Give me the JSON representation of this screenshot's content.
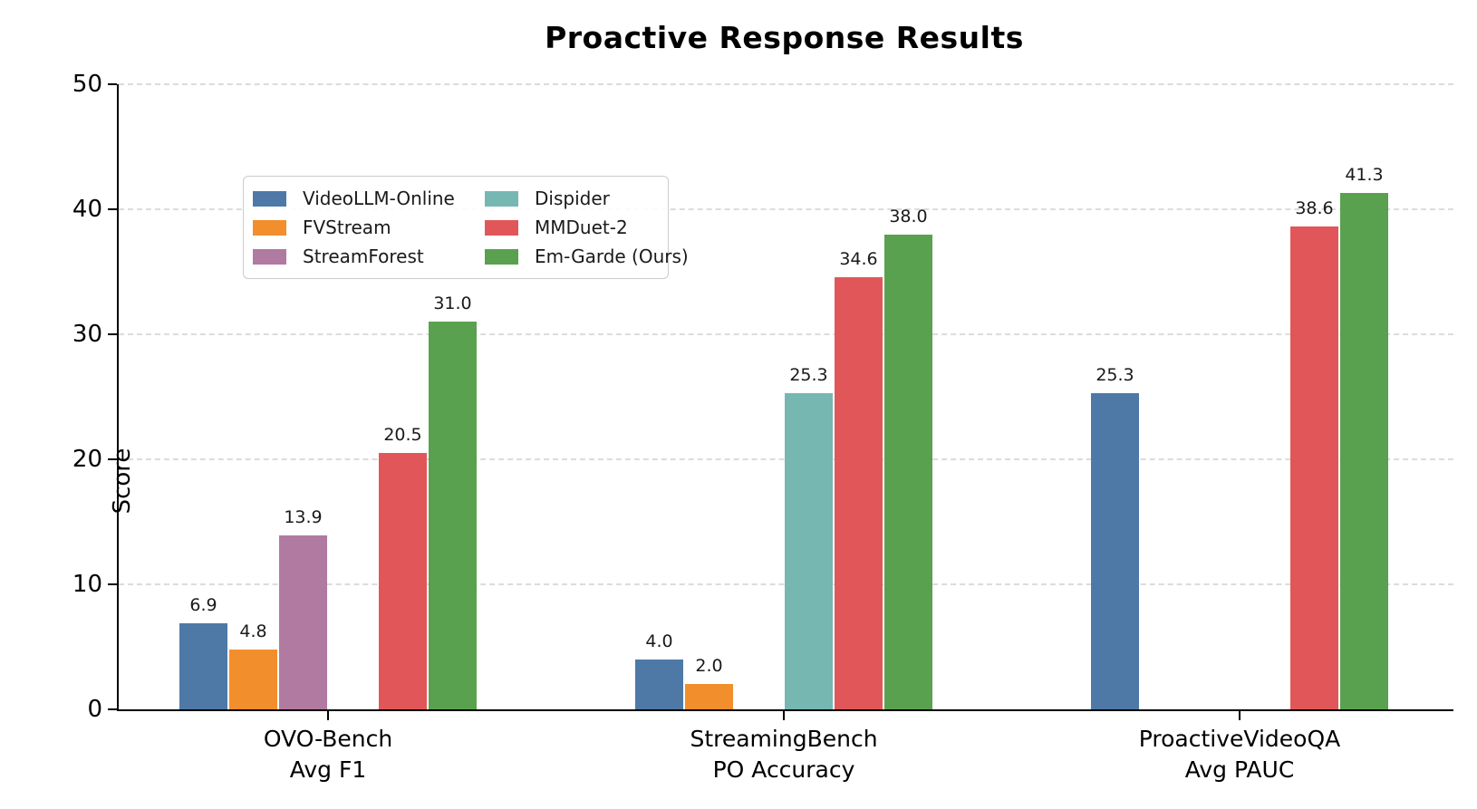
{
  "chart_data": {
    "type": "bar",
    "title": "Proactive Response Results",
    "ylabel": "Score",
    "ylim": [
      0,
      50
    ],
    "yticks": [
      0,
      10,
      20,
      30,
      40,
      50
    ],
    "grid": "horizontal-dashed",
    "grid_color": "#dcdcdc",
    "legend_position": "upper-left-inside-two-columns",
    "categories": [
      "OVO-Bench",
      "StreamingBench",
      "ProactiveVideoQA"
    ],
    "category_sublabels": [
      "Avg F1",
      "PO Accuracy",
      "Avg PAUC"
    ],
    "series": [
      {
        "name": "VideoLLM-Online",
        "color": "#4E79A7",
        "values": [
          6.9,
          4.0,
          25.3
        ]
      },
      {
        "name": "FVStream",
        "color": "#F28E2B",
        "values": [
          4.8,
          2.0,
          null
        ]
      },
      {
        "name": "StreamForest",
        "color": "#B07AA1",
        "values": [
          13.9,
          null,
          null
        ]
      },
      {
        "name": "Dispider",
        "color": "#76B7B2",
        "values": [
          null,
          25.3,
          null
        ]
      },
      {
        "name": "MMDuet-2",
        "color": "#E15759",
        "values": [
          20.5,
          34.6,
          38.6
        ]
      },
      {
        "name": "Em-Garde (Ours)",
        "color": "#59A14F",
        "values": [
          31.0,
          38.0,
          41.3
        ]
      }
    ],
    "bar_value_label_format": "one-decimal"
  }
}
